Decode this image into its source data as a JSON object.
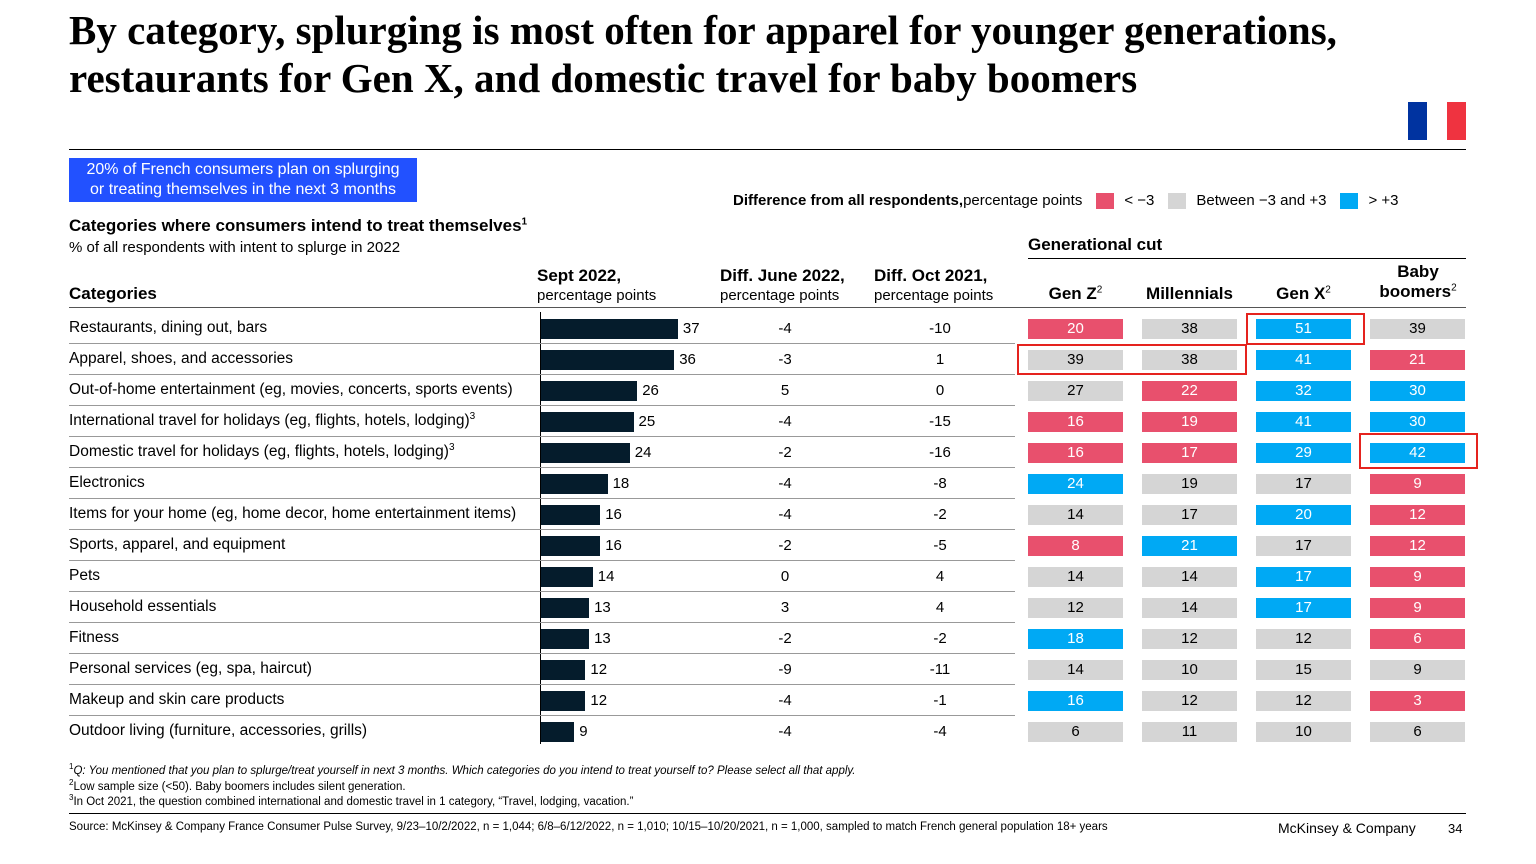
{
  "title": "By category, splurging is most often for apparel for younger generations, restaurants for Gen X, and domestic travel for baby boomers",
  "flag_colors": [
    "#0033a0",
    "#ffffff",
    "#ef3340"
  ],
  "callout": {
    "line1": "20% of French consumers plan on splurging",
    "line2": "or treating themselves in the next 3 months"
  },
  "legend": {
    "title": "Difference from all respondents,",
    "unit": " percentage points",
    "items": [
      {
        "label": "< −3",
        "color": "#e8506d"
      },
      {
        "label": "Between −3 and +3",
        "color": "#d5d5d5"
      },
      {
        "label": "> +3",
        "color": "#00a9f4"
      }
    ]
  },
  "subtitle": {
    "text": "Categories where consumers intend to treat themselves",
    "sup": "1",
    "sub": "% of all respondents with intent to splurge in 2022"
  },
  "columns": {
    "categories": "Categories",
    "sept_title": "Sept 2022,",
    "sept_sub": "percentage points",
    "june_title": "Diff. June 2022,",
    "june_sub": "percentage points",
    "oct_title": "Diff. Oct 2021,",
    "oct_sub": "percentage points",
    "gen_title": "Generational cut",
    "genz": "Gen Z",
    "genz_sup": "2",
    "millennials": "Millennials",
    "genx": "Gen X",
    "genx_sup": "2",
    "boomers1": "Baby",
    "boomers2": "boomers",
    "boomers_sup": "2"
  },
  "chart_data": {
    "type": "bar",
    "title": "Categories where consumers intend to treat themselves",
    "ylabel": "% of all respondents with intent to splurge in 2022",
    "categories": [
      "Restaurants, dining out, bars",
      "Apparel, shoes, and accessories",
      "Out-of-home entertainment (eg, movies, concerts, sports events)",
      "International travel for holidays (eg, flights, hotels, lodging)",
      "Domestic travel for holidays (eg, flights, hotels, lodging)",
      "Electronics",
      "Items for your home (eg, home decor, home entertainment items)",
      "Sports, apparel, and equipment",
      "Pets",
      "Household essentials",
      "Fitness",
      "Personal services (eg, spa, haircut)",
      "Makeup and skin care products",
      "Outdoor living (furniture, accessories, grills)"
    ],
    "label_sups": [
      "",
      "",
      "",
      "3",
      "3",
      "",
      "",
      "",
      "",
      "",
      "",
      "",
      "",
      ""
    ],
    "values": [
      37,
      36,
      26,
      25,
      24,
      18,
      16,
      16,
      14,
      13,
      13,
      12,
      12,
      9
    ],
    "diff_june_2022": [
      "-4",
      "-3",
      "5",
      "-4",
      "-2",
      "-4",
      "-4",
      "-2",
      "0",
      "3",
      "-2",
      "-9",
      "-4",
      "-4"
    ],
    "diff_oct_2021": [
      "-10",
      "1",
      "0",
      "-15",
      "-16",
      "-8",
      "-2",
      "-5",
      "4",
      "4",
      "-2",
      "-11",
      "-1",
      "-4"
    ],
    "generational": {
      "genz": {
        "values": [
          20,
          39,
          27,
          16,
          16,
          24,
          14,
          8,
          14,
          12,
          18,
          14,
          16,
          6
        ],
        "status": [
          "neg",
          "neu",
          "neu",
          "neg",
          "neg",
          "pos",
          "neu",
          "neg",
          "neu",
          "neu",
          "pos",
          "neu",
          "pos",
          "neu"
        ]
      },
      "millennials": {
        "values": [
          38,
          38,
          22,
          19,
          17,
          19,
          17,
          21,
          14,
          14,
          12,
          10,
          12,
          11
        ],
        "status": [
          "neu",
          "neu",
          "neg",
          "neg",
          "neg",
          "neu",
          "neu",
          "pos",
          "neu",
          "neu",
          "neu",
          "neu",
          "neu",
          "neu"
        ]
      },
      "genx": {
        "values": [
          51,
          41,
          32,
          41,
          29,
          17,
          20,
          17,
          17,
          17,
          12,
          15,
          12,
          10
        ],
        "status": [
          "pos",
          "pos",
          "pos",
          "pos",
          "pos",
          "neu",
          "pos",
          "neu",
          "pos",
          "pos",
          "neu",
          "neu",
          "neu",
          "neu"
        ]
      },
      "boomers": {
        "values": [
          39,
          21,
          30,
          30,
          42,
          9,
          12,
          12,
          9,
          9,
          6,
          9,
          3,
          6
        ],
        "status": [
          "neu",
          "neg",
          "pos",
          "pos",
          "pos",
          "neg",
          "neg",
          "neg",
          "neg",
          "neg",
          "neg",
          "neu",
          "neg",
          "neu"
        ]
      }
    },
    "xlim": [
      0,
      40
    ]
  },
  "footnotes": {
    "f1_sup": "1",
    "f1_text": "Q: You mentioned that you plan to splurge/treat yourself in next 3 months. Which categories do you intend to treat yourself to? Please select all that apply.",
    "f2_sup": "2",
    "f2_text": "Low sample size (<50). Baby boomers includes silent generation.",
    "f3_sup": "3",
    "f3_text": "In Oct 2021, the question combined international and domestic travel in 1 category, “Travel, lodging, vacation.”"
  },
  "source": "Source: McKinsey & Company France Consumer Pulse Survey, 9/23–10/2/2022, n = 1,044; 6/8–6/12/2022, n = 1,010; 10/15–10/20/2021, n = 1,000, sampled to match French general population 18+ years",
  "brand": "McKinsey & Company",
  "page_number": "34"
}
